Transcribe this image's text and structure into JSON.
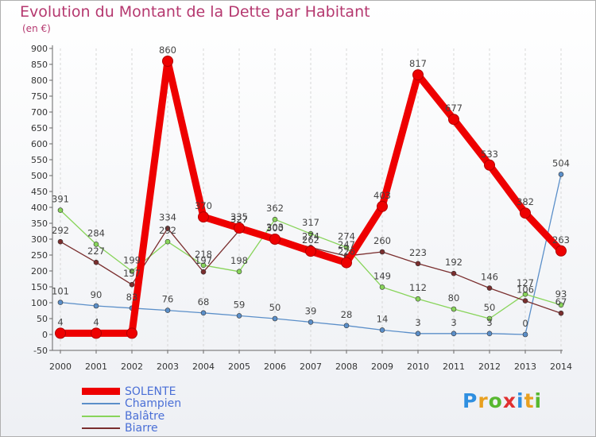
{
  "title": "Evolution du Montant de la Dette par Habitant",
  "unit": "(en €)",
  "logo": {
    "letters": [
      "P",
      "r",
      "o",
      "x",
      "i",
      "t",
      "i"
    ],
    "colors": [
      "#2f8fe0",
      "#e8a020",
      "#58b830",
      "#e03030",
      "#2f8fe0",
      "#e8a020",
      "#58b830"
    ]
  },
  "chart_data": {
    "type": "line",
    "x": [
      2000,
      2001,
      2002,
      2003,
      2004,
      2005,
      2006,
      2007,
      2008,
      2009,
      2010,
      2011,
      2012,
      2013,
      2014
    ],
    "ylim": [
      -50,
      900
    ],
    "y_ticks": [
      -50,
      0,
      50,
      100,
      150,
      200,
      250,
      300,
      350,
      400,
      450,
      500,
      550,
      600,
      650,
      700,
      750,
      800,
      850,
      900
    ],
    "grid": "x-dashed",
    "legend_position": "bottom-left",
    "series": [
      {
        "name": "SOLENTE",
        "color": "#ee0000",
        "values": [
          4,
          4,
          4,
          860,
          370,
          335,
          300,
          262,
          226,
          403,
          817,
          677,
          533,
          382,
          263
        ],
        "labels": [
          "4",
          "4",
          "",
          "860",
          "370",
          "335",
          "300",
          "262",
          "226",
          "403",
          "817",
          "677",
          "533",
          "382",
          "263"
        ]
      },
      {
        "name": "Champien",
        "color": "#5b8fc9",
        "values": [
          101,
          90,
          83,
          76,
          68,
          59,
          50,
          39,
          28,
          14,
          3,
          3,
          3,
          0,
          504
        ],
        "labels": [
          "101",
          "90",
          "83",
          "76",
          "68",
          "59",
          "50",
          "39",
          "28",
          "14",
          "3",
          "3",
          "3",
          "0",
          "504"
        ]
      },
      {
        "name": "Balâtre",
        "color": "#88d45a",
        "values": [
          391,
          284,
          199,
          292,
          218,
          198,
          362,
          317,
          274,
          149,
          112,
          80,
          50,
          127,
          93
        ],
        "labels": [
          "391",
          "284",
          "199",
          "292",
          "218",
          "198",
          "362",
          "317",
          "274",
          "149",
          "112",
          "80",
          "50",
          "127",
          "93"
        ]
      },
      {
        "name": "Biarre",
        "color": "#7a2e2e",
        "values": [
          292,
          227,
          157,
          334,
          197,
          327,
          303,
          274,
          247,
          260,
          223,
          192,
          146,
          106,
          67
        ],
        "labels": [
          "292",
          "227",
          "157",
          "334",
          "197",
          "327",
          "303",
          "274",
          "247",
          "260",
          "223",
          "192",
          "146",
          "106",
          "67"
        ]
      }
    ]
  }
}
